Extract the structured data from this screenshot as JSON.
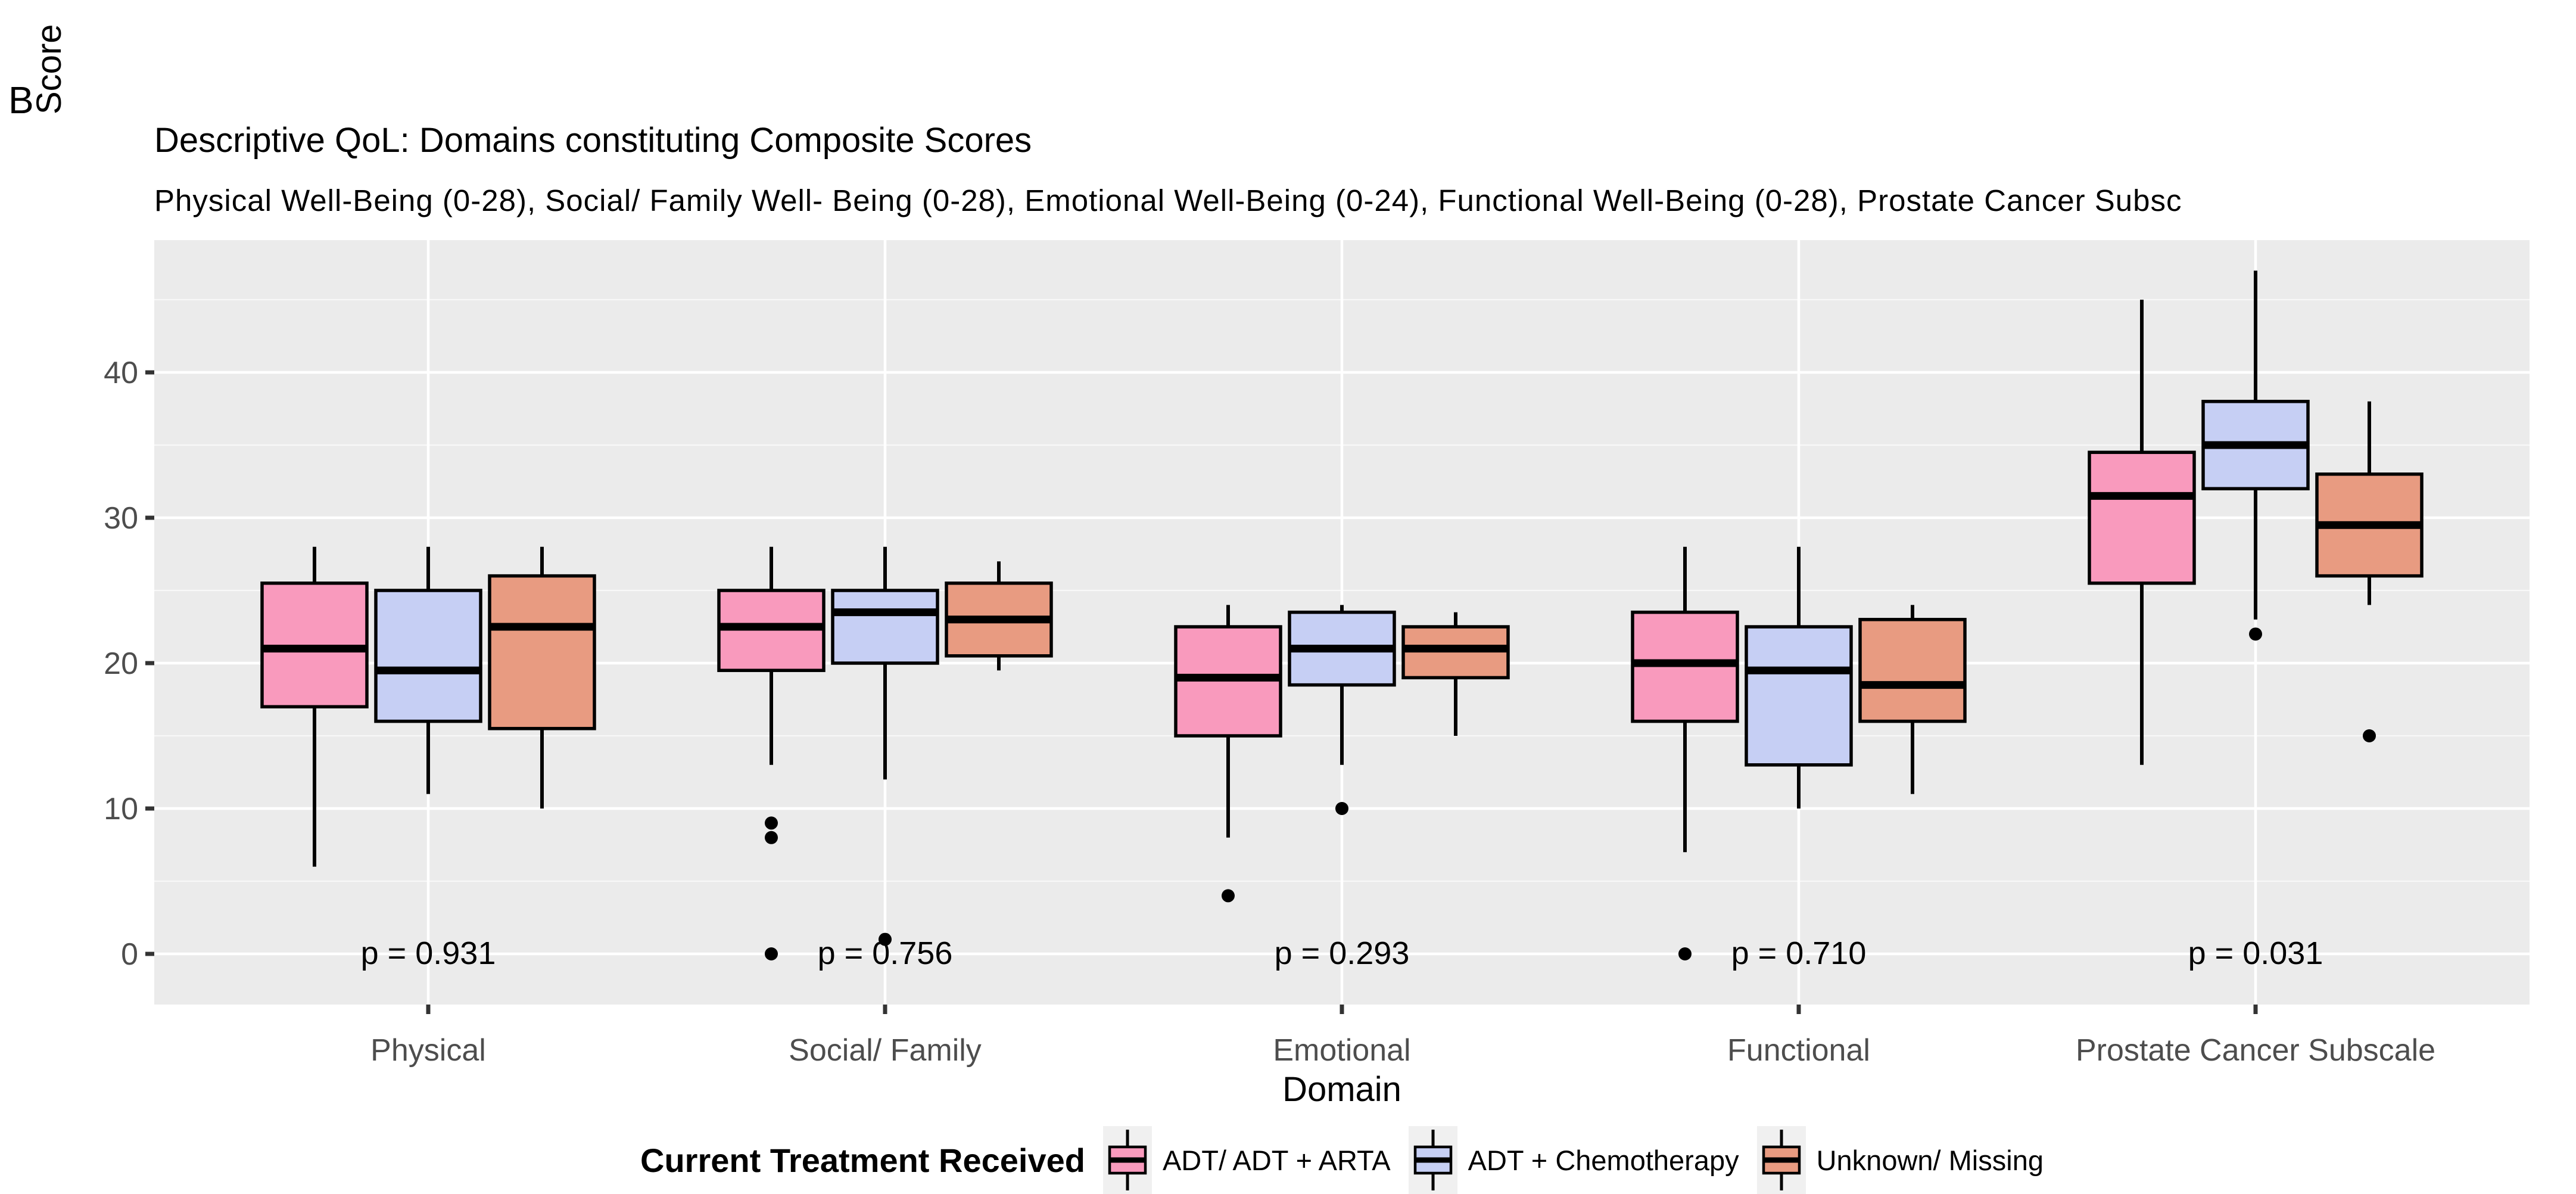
{
  "panel_label": "B",
  "title": "Descriptive QoL: Domains constituting Composite Scores",
  "subtitle": "Physical Well-Being (0-28), Social/ Family Well- Being (0-28), Emotional Well-Being (0-24), Functional Well-Being (0-28), Prostate Cancer Subsc",
  "y_axis": {
    "title": "Score",
    "ticks": [
      0,
      10,
      20,
      30,
      40
    ],
    "minor_ticks": [
      5,
      15,
      25,
      35,
      45
    ],
    "tick_label_color": "#4D4D4D"
  },
  "x_axis": {
    "title": "Domain",
    "labels": [
      "Physical",
      "Social/ Family",
      "Emotional",
      "Functional",
      "Prostate Cancer Subscale"
    ],
    "tick_label_color": "#4D4D4D"
  },
  "p_values": [
    "p = 0.931",
    "p = 0.756",
    "p = 0.293",
    "p = 0.710",
    "p = 0.031"
  ],
  "legend": {
    "title": "Current Treatment Received",
    "items": [
      {
        "label": "ADT/ ADT + ARTA",
        "color": "#F99ABD"
      },
      {
        "label": "ADT + Chemotherapy",
        "color": "#C6CFF4"
      },
      {
        "label": "Unknown/ Missing",
        "color": "#E89B81"
      }
    ]
  },
  "style": {
    "panel_background": "#EBEBEB",
    "grid_major_color": "#FFFFFF",
    "grid_minor_color": "#F8F8F8",
    "box_border_color": "#000000",
    "median_color": "#000000",
    "outlier_color": "#000000",
    "tick_mark_color": "#333333",
    "legend_key_background": "#F0F0F0"
  },
  "chart_data": {
    "type": "boxplot",
    "title": "Descriptive QoL: Domains constituting Composite Scores",
    "xlabel": "Domain",
    "ylabel": "Score",
    "ylim": [
      -3.5,
      49.2
    ],
    "grid": true,
    "legend_position": "bottom",
    "categories": [
      "Physical",
      "Social/ Family",
      "Emotional",
      "Functional",
      "Prostate Cancer Subscale"
    ],
    "p_values": [
      0.931,
      0.756,
      0.293,
      0.71,
      0.031
    ],
    "series": [
      {
        "name": "ADT/ ADT + ARTA",
        "color": "#F99ABD",
        "boxes": [
          {
            "min": 6,
            "q1": 17,
            "median": 21,
            "q3": 25.5,
            "max": 28,
            "outliers": []
          },
          {
            "min": 13,
            "q1": 19.5,
            "median": 22.5,
            "q3": 25,
            "max": 28,
            "outliers": [
              9,
              8,
              0
            ]
          },
          {
            "min": 8,
            "q1": 15,
            "median": 19,
            "q3": 22.5,
            "max": 24,
            "outliers": [
              4
            ]
          },
          {
            "min": 7,
            "q1": 16,
            "median": 20,
            "q3": 23.5,
            "max": 28,
            "outliers": [
              0
            ]
          },
          {
            "min": 13,
            "q1": 25.5,
            "median": 31.5,
            "q3": 34.5,
            "max": 45,
            "outliers": []
          }
        ]
      },
      {
        "name": "ADT + Chemotherapy",
        "color": "#C6CFF4",
        "boxes": [
          {
            "min": 11,
            "q1": 16,
            "median": 19.5,
            "q3": 25,
            "max": 28,
            "outliers": []
          },
          {
            "min": 12,
            "q1": 20,
            "median": 23.5,
            "q3": 25,
            "max": 28,
            "outliers": [
              1
            ]
          },
          {
            "min": 13,
            "q1": 18.5,
            "median": 21,
            "q3": 23.5,
            "max": 24,
            "outliers": [
              10
            ]
          },
          {
            "min": 10,
            "q1": 13,
            "median": 19.5,
            "q3": 22.5,
            "max": 28,
            "outliers": []
          },
          {
            "min": 23,
            "q1": 32,
            "median": 35,
            "q3": 38,
            "max": 47,
            "outliers": [
              22
            ]
          }
        ]
      },
      {
        "name": "Unknown/ Missing",
        "color": "#E89B81",
        "boxes": [
          {
            "min": 10,
            "q1": 15.5,
            "median": 22.5,
            "q3": 26,
            "max": 28,
            "outliers": []
          },
          {
            "min": 19.5,
            "q1": 20.5,
            "median": 23,
            "q3": 25.5,
            "max": 27,
            "outliers": []
          },
          {
            "min": 15,
            "q1": 19,
            "median": 21,
            "q3": 22.5,
            "max": 23.5,
            "outliers": []
          },
          {
            "min": 11,
            "q1": 16,
            "median": 18.5,
            "q3": 23,
            "max": 24,
            "outliers": []
          },
          {
            "min": 24,
            "q1": 26,
            "median": 29.5,
            "q3": 33,
            "max": 38,
            "outliers": [
              15
            ]
          }
        ]
      }
    ]
  }
}
